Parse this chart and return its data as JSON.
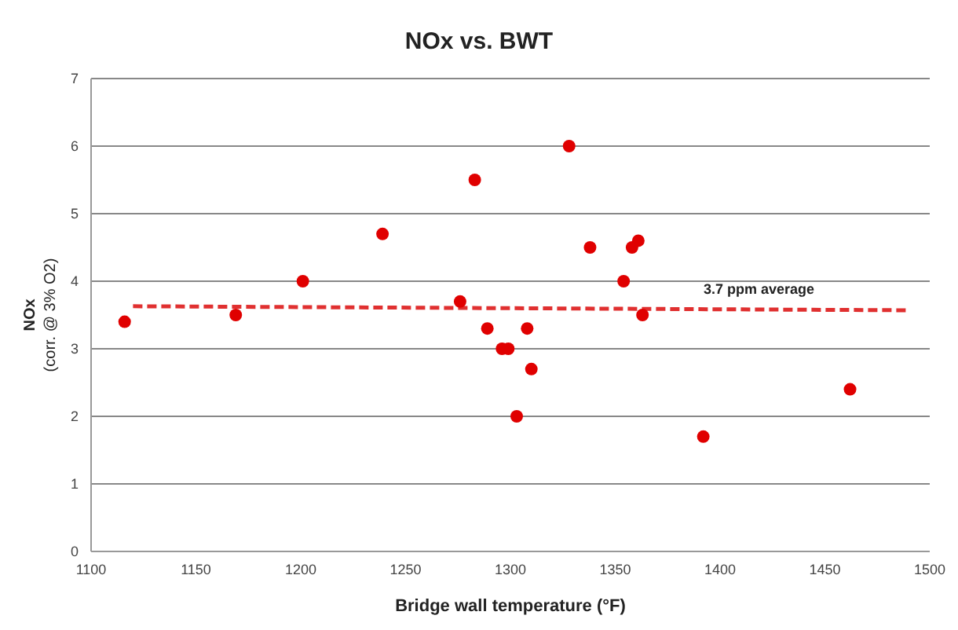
{
  "chart_data": {
    "type": "scatter",
    "title": "NOx vs. BWT",
    "xlabel": "Bridge wall temperature  (°F)",
    "ylabel": "NOx\n(corr. @ 3% O2)",
    "xlim": [
      1100,
      1500
    ],
    "xticks": [
      1100,
      1150,
      1200,
      1250,
      1300,
      1350,
      1400,
      1450,
      1500
    ],
    "ylim": [
      0,
      7
    ],
    "yticks": [
      0,
      1,
      2,
      3,
      4,
      5,
      6,
      7
    ],
    "grid": "y",
    "series": [
      {
        "marker": "circle",
        "color": "#e00000",
        "x": [
          1116,
          1169,
          1201,
          1239,
          1276,
          1283,
          1289,
          1296,
          1299,
          1303,
          1308,
          1310,
          1328,
          1338,
          1354,
          1358,
          1361,
          1363,
          1392,
          1462
        ],
        "values": [
          3.4,
          3.5,
          4.0,
          4.7,
          3.7,
          5.5,
          3.3,
          3.0,
          3.0,
          2.0,
          3.3,
          2.7,
          6.0,
          4.5,
          4.0,
          4.5,
          4.6,
          3.5,
          1.7,
          2.4
        ]
      },
      {
        "type": "line",
        "color": "#e03030",
        "line_style": "dashed",
        "x": [
          1120,
          1490
        ],
        "values": [
          3.63,
          3.57
        ]
      }
    ],
    "annotations": [
      "3.7 ppm average"
    ]
  }
}
